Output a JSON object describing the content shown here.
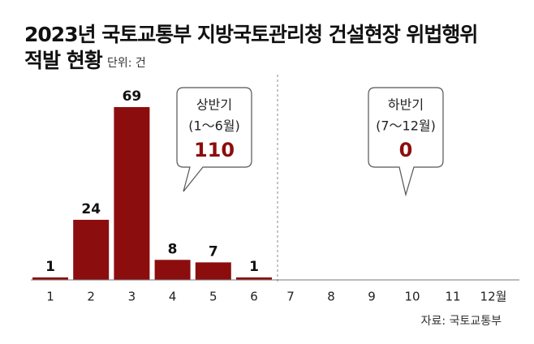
{
  "chart_data": {
    "type": "bar",
    "title": "2023년 국토교통부 지방국토관리청 건설현장 위법행위",
    "title_line2": "적발 현황",
    "unit": "단위: 건",
    "categories": [
      "1",
      "2",
      "3",
      "4",
      "5",
      "6",
      "7",
      "8",
      "9",
      "10",
      "11",
      "12월"
    ],
    "values": [
      1,
      24,
      69,
      8,
      7,
      1,
      null,
      null,
      null,
      null,
      null,
      null
    ],
    "color": "#8c0d0d",
    "halves": [
      {
        "label": "상반기",
        "period": "(1～6월)",
        "total": 110
      },
      {
        "label": "하반기",
        "period": "(7～12월)",
        "total": 0
      }
    ],
    "source": "자료: 국토교통부"
  }
}
